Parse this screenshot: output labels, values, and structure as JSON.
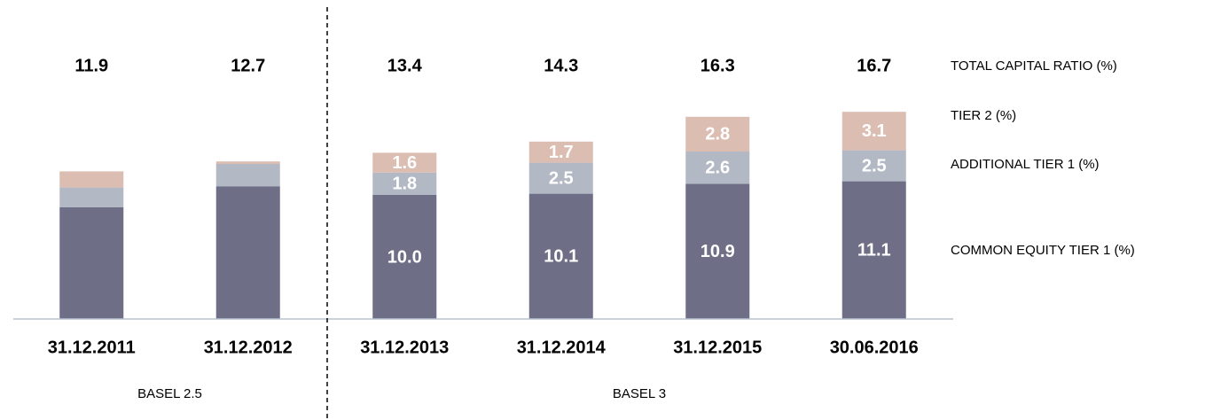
{
  "chart_data": {
    "type": "stacked_bar",
    "categories": [
      "31.12.2011",
      "31.12.2012",
      "31.12.2013",
      "31.12.2014",
      "31.12.2015",
      "30.06.2016"
    ],
    "series": [
      {
        "name": "COMMON EQUITY TIER 1 (%)",
        "color": "#6e6e87",
        "values": [
          9.0,
          10.7,
          10.0,
          10.1,
          10.9,
          11.1
        ],
        "value_labels": [
          null,
          null,
          "10.0",
          "10.1",
          "10.9",
          "11.1"
        ]
      },
      {
        "name": "ADDITIONAL TIER 1 (%)",
        "color": "#b3b8c5",
        "values": [
          1.6,
          1.8,
          1.8,
          2.5,
          2.6,
          2.5
        ],
        "value_labels": [
          null,
          null,
          "1.8",
          "2.5",
          "2.6",
          "2.5"
        ]
      },
      {
        "name": "TIER 2 (%)",
        "color": "#dbbdb1",
        "values": [
          1.3,
          0.2,
          1.6,
          1.7,
          2.8,
          3.1
        ],
        "value_labels": [
          null,
          null,
          "1.6",
          "1.7",
          "2.8",
          "3.1"
        ]
      }
    ],
    "totals_label": "TOTAL CAPITAL RATIO (%)",
    "totals": [
      11.9,
      12.7,
      13.4,
      14.3,
      16.3,
      16.7
    ],
    "groups": [
      {
        "label": "BASEL 2.5",
        "count": 2
      },
      {
        "label": "BASEL 3",
        "count": 4
      }
    ],
    "ylim": [
      0,
      25
    ]
  }
}
